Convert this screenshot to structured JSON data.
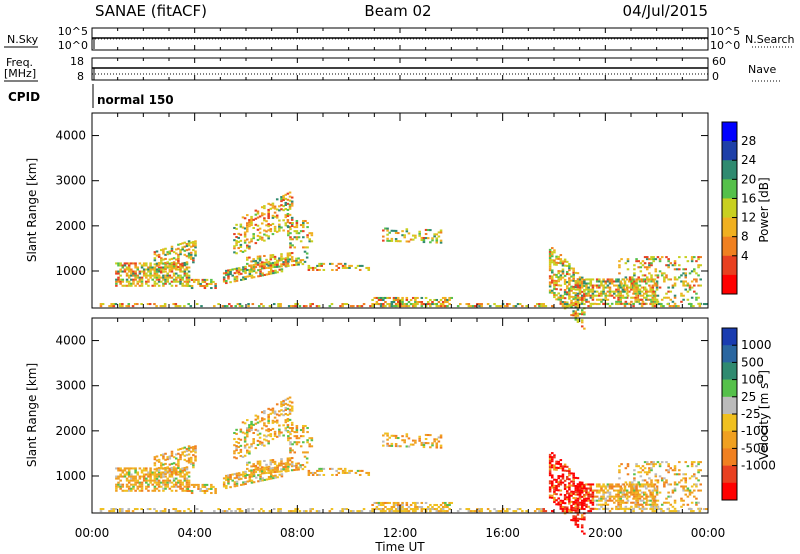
{
  "header": {
    "station": "SANAE (fitACF)",
    "beam": "Beam 02",
    "date": "04/Jul/2015"
  },
  "top_panel": {
    "left_label": "N.Sky",
    "right_label": "N.Search",
    "left_ticks": [
      "10^5",
      "10^0"
    ],
    "right_ticks": [
      "10^5",
      "10^0"
    ]
  },
  "freq_panel": {
    "left_label_1": "Freq.",
    "left_label_2": "[MHz]",
    "left_ticks": [
      "18",
      "8"
    ],
    "right_label": "Nave",
    "right_ticks": [
      "60",
      "0"
    ]
  },
  "cpid": {
    "label": "CPID",
    "value": "normal 150"
  },
  "chart_data": [
    {
      "type": "heatmap",
      "name": "power",
      "ylabel": "Slant Range [km]",
      "xlabel": "",
      "x_ticks": [
        "00:00",
        "04:00",
        "08:00",
        "12:00",
        "16:00",
        "20:00",
        "00:00"
      ],
      "x_range_hours": [
        0,
        24
      ],
      "y_ticks": [
        1000,
        2000,
        3000,
        4000
      ],
      "y_range_km": [
        180,
        4500
      ],
      "colorbar": {
        "label": "Power [dB]",
        "ticks": [
          "4",
          "8",
          "12",
          "16",
          "20",
          "24",
          "28"
        ],
        "colors": [
          "#0000ff",
          "#1e40a8",
          "#2f8a70",
          "#55c04a",
          "#c8d020",
          "#f0b020",
          "#f08020",
          "#e84020",
          "#ff0000"
        ]
      }
    },
    {
      "type": "heatmap",
      "name": "velocity",
      "ylabel": "Slant Range [km]",
      "xlabel": "Time UT",
      "x_ticks": [
        "00:00",
        "04:00",
        "08:00",
        "12:00",
        "16:00",
        "20:00",
        "00:00"
      ],
      "x_range_hours": [
        0,
        24
      ],
      "y_ticks": [
        1000,
        2000,
        3000,
        4000
      ],
      "y_range_km": [
        180,
        4500
      ],
      "colorbar": {
        "label_main": "Velocity [m s",
        "label_sup": "-1",
        "label_end": "]",
        "ticks": [
          "1000",
          "500",
          "100",
          "25",
          "-25",
          "-100",
          "-500",
          "-1000"
        ],
        "colors": [
          "#1a3cb0",
          "#2a66a0",
          "#2f8a70",
          "#55c04a",
          "#bbbbbb",
          "#f0c020",
          "#f0a020",
          "#f08020",
          "#e84020",
          "#ff0000"
        ]
      }
    }
  ]
}
